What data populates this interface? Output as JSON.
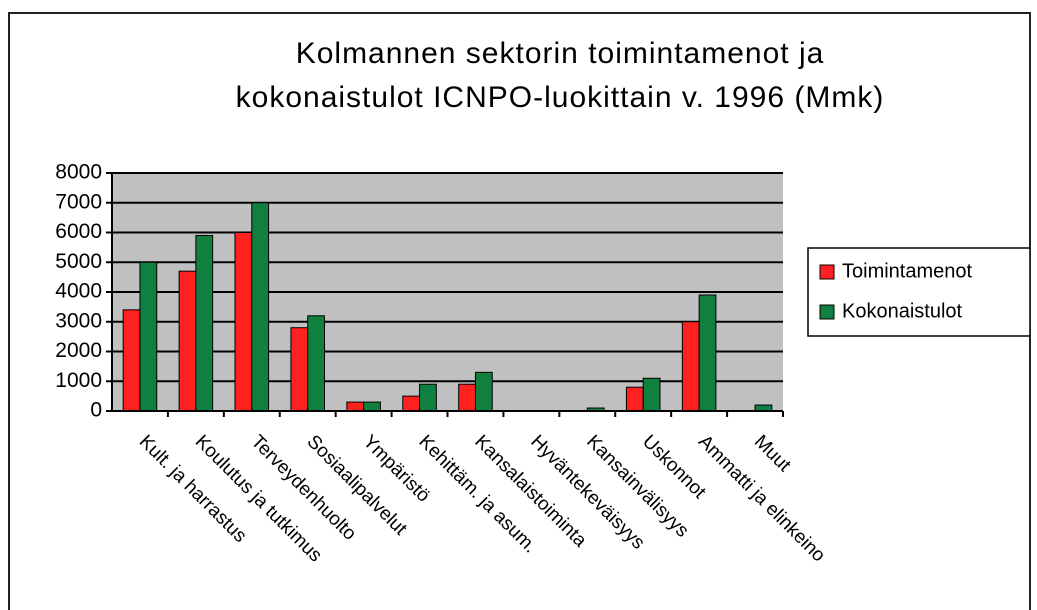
{
  "chart_data": {
    "type": "bar",
    "title": [
      "Kolmannen sektorin toimintamenot ja",
      "kokonaistulot ICNPO-luokittain v. 1996 (Mmk)"
    ],
    "categories": [
      "Kult. ja harrastus",
      "Koulutus ja tutkimus",
      "Terveydenhuolto",
      "Sosiaalipalvelut",
      "Ympäristö",
      "Kehittäm. ja asum.",
      "Kansalaistoiminta",
      "Hyväntekeväisyys",
      "Kansainvälisyys",
      "Uskonnot",
      "Ammatti ja elinkeino",
      "Muut"
    ],
    "series": [
      {
        "name": "Toimintamenot",
        "color": "#ff2020",
        "values": [
          3400,
          4700,
          6000,
          2800,
          300,
          500,
          900,
          0,
          0,
          800,
          3000,
          0
        ]
      },
      {
        "name": "Kokonaistulot",
        "color": "#108040",
        "values": [
          5000,
          5900,
          7000,
          3200,
          300,
          900,
          1300,
          0,
          100,
          1100,
          3900,
          200
        ]
      }
    ],
    "ylim": [
      0,
      8000
    ],
    "yticks": [
      0,
      1000,
      2000,
      3000,
      4000,
      5000,
      6000,
      7000,
      8000
    ],
    "grid": true,
    "legend": "right",
    "plot_background": "#c0c0c0"
  }
}
